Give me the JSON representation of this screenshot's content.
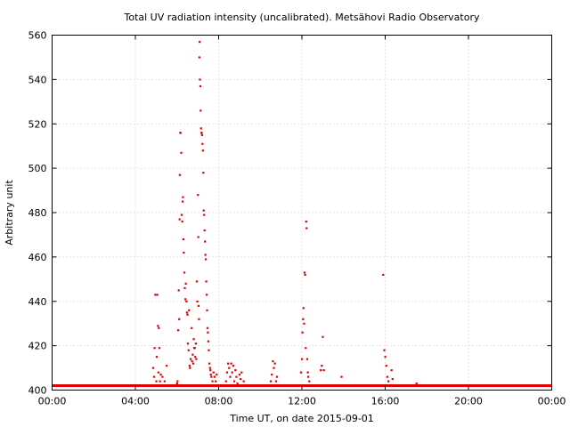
{
  "chart_data": {
    "type": "scatter",
    "title": "Total UV radiation intensity (uncalibrated). Metsähovi Radio Observatory",
    "xlabel": "Time UT, on date 2015-09-01",
    "ylabel": "Arbitrary unit",
    "xlim": [
      0,
      24
    ],
    "ylim": [
      400,
      560
    ],
    "x_ticks": [
      0,
      4,
      8,
      12,
      16,
      20,
      24
    ],
    "x_tick_labels": [
      "00:00",
      "04:00",
      "08:00",
      "12:00",
      "16:00",
      "20:00",
      "00:00"
    ],
    "y_ticks": [
      400,
      420,
      440,
      460,
      480,
      500,
      520,
      540,
      560
    ],
    "y_tick_labels": [
      "400",
      "420",
      "440",
      "460",
      "480",
      "500",
      "520",
      "540",
      "560"
    ],
    "grid": true,
    "marker_color": "#e00000",
    "series": [
      {
        "baseline": {
          "x_start": 0,
          "x_end": 24,
          "y": 402
        },
        "points": [
          [
            4.85,
            410
          ],
          [
            4.9,
            406
          ],
          [
            4.92,
            419
          ],
          [
            4.95,
            443
          ],
          [
            5.0,
            404
          ],
          [
            5.02,
            415
          ],
          [
            5.05,
            443
          ],
          [
            5.08,
            429
          ],
          [
            5.1,
            408
          ],
          [
            5.12,
            428
          ],
          [
            5.15,
            419
          ],
          [
            5.18,
            404
          ],
          [
            5.22,
            407
          ],
          [
            5.3,
            406
          ],
          [
            5.4,
            404
          ],
          [
            5.5,
            411
          ],
          [
            6.0,
            403
          ],
          [
            6.02,
            404
          ],
          [
            6.05,
            427
          ],
          [
            6.08,
            445
          ],
          [
            6.1,
            432
          ],
          [
            6.12,
            477
          ],
          [
            6.13,
            497
          ],
          [
            6.15,
            516
          ],
          [
            6.17,
            516
          ],
          [
            6.2,
            507
          ],
          [
            6.22,
            479
          ],
          [
            6.25,
            476
          ],
          [
            6.27,
            485
          ],
          [
            6.28,
            487
          ],
          [
            6.3,
            468
          ],
          [
            6.32,
            462
          ],
          [
            6.35,
            453
          ],
          [
            6.37,
            446
          ],
          [
            6.4,
            441
          ],
          [
            6.42,
            448
          ],
          [
            6.45,
            440
          ],
          [
            6.47,
            435
          ],
          [
            6.5,
            434
          ],
          [
            6.52,
            421
          ],
          [
            6.55,
            418
          ],
          [
            6.57,
            436
          ],
          [
            6.6,
            411
          ],
          [
            6.62,
            410
          ],
          [
            6.65,
            414
          ],
          [
            6.7,
            428
          ],
          [
            6.72,
            413
          ],
          [
            6.75,
            416
          ],
          [
            6.78,
            412
          ],
          [
            6.8,
            423
          ],
          [
            6.82,
            419
          ],
          [
            6.85,
            419
          ],
          [
            6.87,
            415
          ],
          [
            6.9,
            421
          ],
          [
            6.92,
            414
          ],
          [
            6.95,
            449
          ],
          [
            6.97,
            440
          ],
          [
            7.0,
            488
          ],
          [
            7.02,
            469
          ],
          [
            7.03,
            438
          ],
          [
            7.05,
            432
          ],
          [
            7.07,
            550
          ],
          [
            7.08,
            557
          ],
          [
            7.1,
            540
          ],
          [
            7.12,
            537
          ],
          [
            7.13,
            526
          ],
          [
            7.15,
            518
          ],
          [
            7.17,
            516
          ],
          [
            7.18,
            516
          ],
          [
            7.2,
            515
          ],
          [
            7.22,
            511
          ],
          [
            7.24,
            508
          ],
          [
            7.26,
            498
          ],
          [
            7.28,
            481
          ],
          [
            7.3,
            479
          ],
          [
            7.32,
            472
          ],
          [
            7.34,
            467
          ],
          [
            7.36,
            461
          ],
          [
            7.38,
            459
          ],
          [
            7.4,
            449
          ],
          [
            7.42,
            443
          ],
          [
            7.44,
            436
          ],
          [
            7.46,
            428
          ],
          [
            7.48,
            426
          ],
          [
            7.5,
            422
          ],
          [
            7.52,
            418
          ],
          [
            7.55,
            412
          ],
          [
            7.58,
            410
          ],
          [
            7.6,
            409
          ],
          [
            7.62,
            407
          ],
          [
            7.65,
            406
          ],
          [
            7.7,
            404
          ],
          [
            7.75,
            408
          ],
          [
            7.8,
            406
          ],
          [
            7.85,
            404
          ],
          [
            7.9,
            407
          ],
          [
            8.35,
            404
          ],
          [
            8.4,
            408
          ],
          [
            8.45,
            412
          ],
          [
            8.5,
            410
          ],
          [
            8.55,
            406
          ],
          [
            8.6,
            412
          ],
          [
            8.65,
            408
          ],
          [
            8.7,
            411
          ],
          [
            8.75,
            404
          ],
          [
            8.8,
            409
          ],
          [
            8.85,
            406
          ],
          [
            8.9,
            403
          ],
          [
            9.0,
            407
          ],
          [
            9.05,
            405
          ],
          [
            9.1,
            408
          ],
          [
            9.2,
            404
          ],
          [
            10.5,
            404
          ],
          [
            10.55,
            407
          ],
          [
            10.6,
            413
          ],
          [
            10.65,
            410
          ],
          [
            10.7,
            412
          ],
          [
            10.75,
            404
          ],
          [
            10.8,
            406
          ],
          [
            11.95,
            408
          ],
          [
            12.0,
            414
          ],
          [
            12.02,
            426
          ],
          [
            12.05,
            432
          ],
          [
            12.07,
            437
          ],
          [
            12.1,
            430
          ],
          [
            12.12,
            453
          ],
          [
            12.15,
            452
          ],
          [
            12.18,
            419
          ],
          [
            12.2,
            476
          ],
          [
            12.22,
            473
          ],
          [
            12.25,
            414
          ],
          [
            12.28,
            408
          ],
          [
            12.3,
            406
          ],
          [
            12.35,
            404
          ],
          [
            12.9,
            409
          ],
          [
            12.95,
            411
          ],
          [
            13.0,
            424
          ],
          [
            13.05,
            409
          ],
          [
            13.9,
            406
          ],
          [
            15.9,
            452
          ],
          [
            15.95,
            418
          ],
          [
            16.0,
            415
          ],
          [
            16.05,
            411
          ],
          [
            16.1,
            406
          ],
          [
            16.15,
            404
          ],
          [
            16.3,
            409
          ],
          [
            16.35,
            405
          ],
          [
            17.5,
            403
          ]
        ]
      }
    ]
  }
}
